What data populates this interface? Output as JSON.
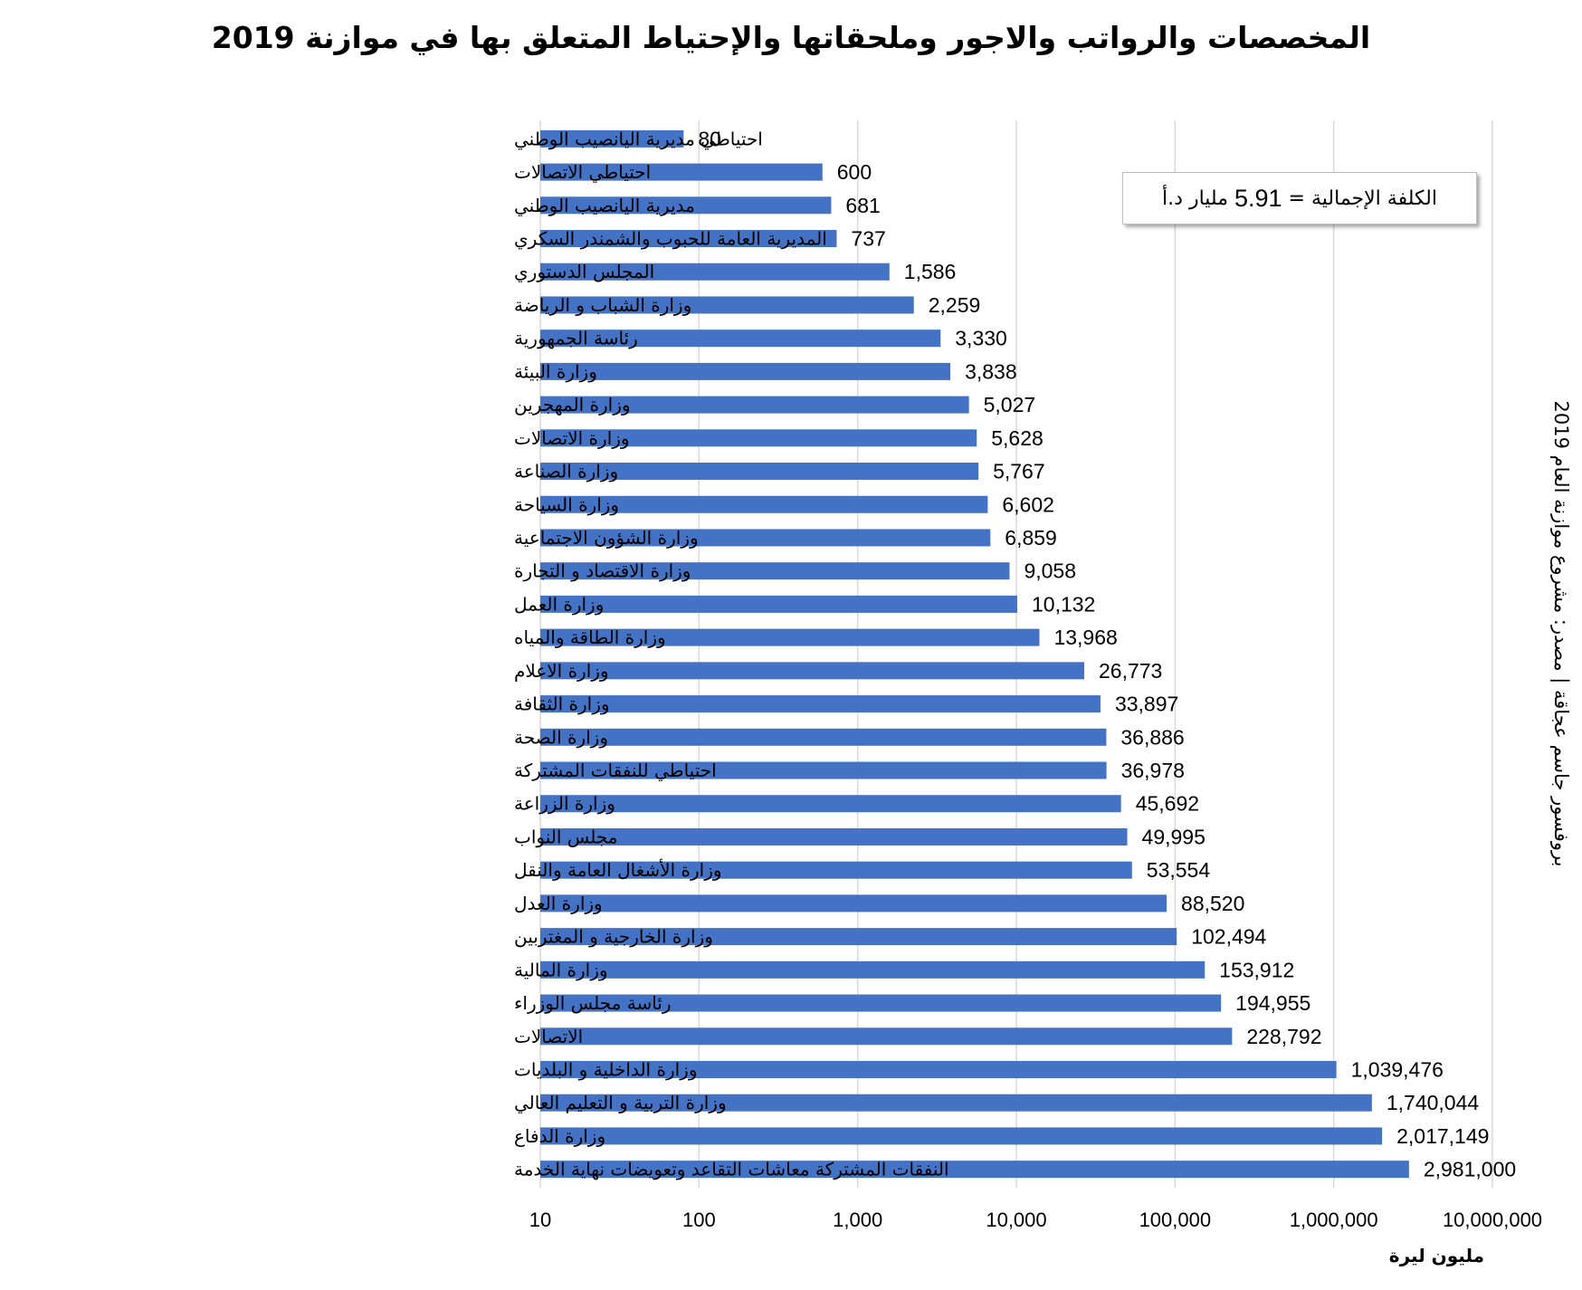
{
  "title": "المخصصات والرواتب والاجور وملحقاتها والإحتياط المتعلق بها في موازنة 2019",
  "side_note": "بروفسور جاسم عجاقة | مصدر: مشروع موازنة العام 2019",
  "total_box": {
    "label": "الكلفة الإجمالية =",
    "value": "5.91",
    "unit": "مليار د.أ"
  },
  "x_unit": "مليون ليرة",
  "colors": {
    "bar": "#4472C4",
    "gridline": "#d9d9d9",
    "text": "#000000"
  },
  "chart_data": {
    "type": "bar",
    "orientation": "horizontal",
    "x_scale": "log",
    "xlim": [
      10,
      10000000
    ],
    "x_ticks": [
      10,
      100,
      1000,
      10000,
      100000,
      1000000,
      10000000
    ],
    "x_tick_labels": [
      "10",
      "100",
      "1,000",
      "10,000",
      "100,000",
      "1,000,000",
      "10,000,000"
    ],
    "xlabel": "مليون ليرة",
    "grid": true,
    "categories": [
      "احتياطي مديرية اليانصيب الوطني",
      "احتياطي الاتصالات",
      "مديرية اليانصيب الوطني",
      "المديرية العامة للحبوب والشمندر السكري",
      "المجلس الدستوري",
      "وزارة الشباب و الرياضة",
      "رئاسة الجمهورية",
      "وزارة البيئة",
      "وزارة المهجرين",
      "وزارة الاتصالات",
      "وزارة الصناعة",
      "وزارة السياحة",
      "وزارة الشؤون الاجتماعية",
      "وزارة الاقتصاد و التجارة",
      "وزارة العمل",
      "وزارة الطاقة والمياه",
      "وزارة الاعلام",
      "وزارة الثقافة",
      "وزارة الصحة",
      "احتياطي للنفقات المشتركة",
      "وزارة الزراعة",
      "مجلس النواب",
      "وزارة الأشغال العامة والنقل",
      "وزارة العدل",
      "وزارة الخارجية و المغتربين",
      "وزارة المالية",
      "رئاسة مجلس الوزراء",
      "الاتصالات",
      "وزارة الداخلية و البلديات",
      "وزارة التربية و التعليم العالي",
      "وزارة الدفاع",
      "النفقات المشتركة معاشات التقاعد وتعويضات نهاية الخدمة"
    ],
    "values": [
      80,
      600,
      681,
      737,
      1586,
      2259,
      3330,
      3838,
      5027,
      5628,
      5767,
      6602,
      6859,
      9058,
      10132,
      13968,
      26773,
      33897,
      36886,
      36978,
      45692,
      49995,
      53554,
      88520,
      102494,
      153912,
      194955,
      228792,
      1039476,
      1740044,
      2017149,
      2981000
    ],
    "value_labels": [
      "80",
      "600",
      "681",
      "737",
      "1,586",
      "2,259",
      "3,330",
      "3,838",
      "5,027",
      "5,628",
      "5,767",
      "6,602",
      "6,859",
      "9,058",
      "10,132",
      "13,968",
      "26,773",
      "33,897",
      "36,886",
      "36,978",
      "45,692",
      "49,995",
      "53,554",
      "88,520",
      "102,494",
      "153,912",
      "194,955",
      "228,792",
      "1,039,476",
      "1,740,044",
      "2,017,149",
      "2,981,000"
    ]
  }
}
